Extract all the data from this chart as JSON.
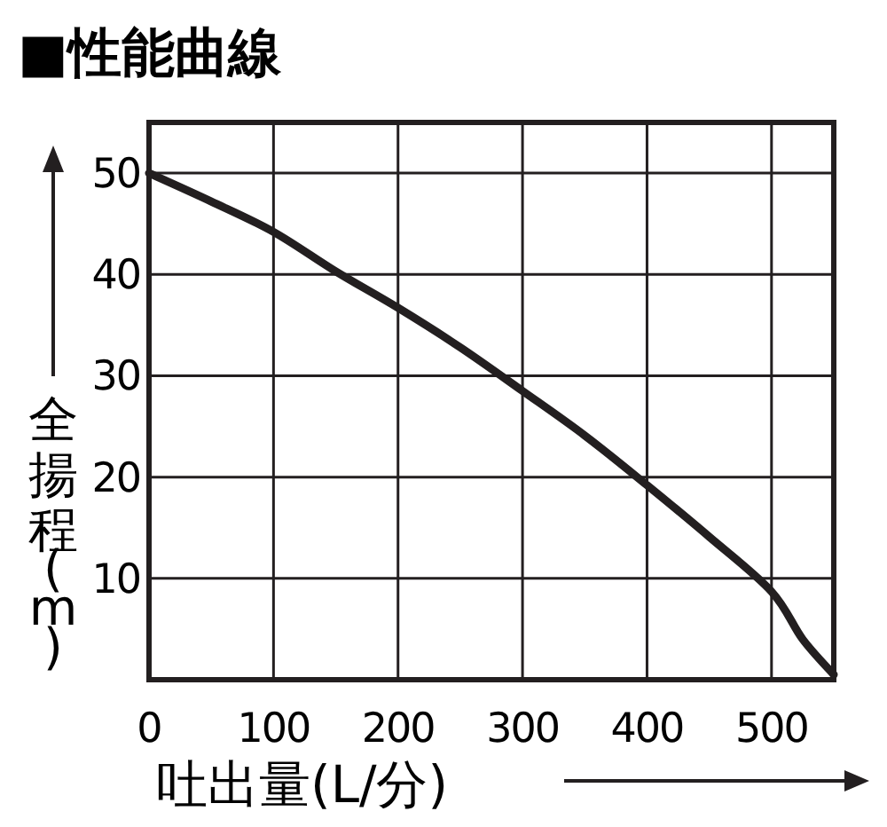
{
  "chart_data": {
    "type": "line",
    "title": "■性能曲線",
    "xlabel": "吐出量(L/分)",
    "ylabel": "全揚程(m)",
    "x": [
      0,
      50,
      100,
      150,
      200,
      250,
      300,
      350,
      400,
      450,
      500,
      525,
      550
    ],
    "series": [
      {
        "color": "#231f20",
        "values": [
          50,
          47.2,
          44.2,
          40.3,
          36.7,
          32.8,
          28.5,
          24.1,
          19.2,
          14.1,
          8.7,
          4,
          0.5
        ]
      }
    ],
    "xlim": [
      0,
      550
    ],
    "ylim": [
      0,
      55
    ],
    "xticks": [
      0,
      100,
      200,
      300,
      400,
      500
    ],
    "yticks": [
      10,
      20,
      30,
      40,
      50
    ],
    "grid": true,
    "line_style": "solid"
  }
}
